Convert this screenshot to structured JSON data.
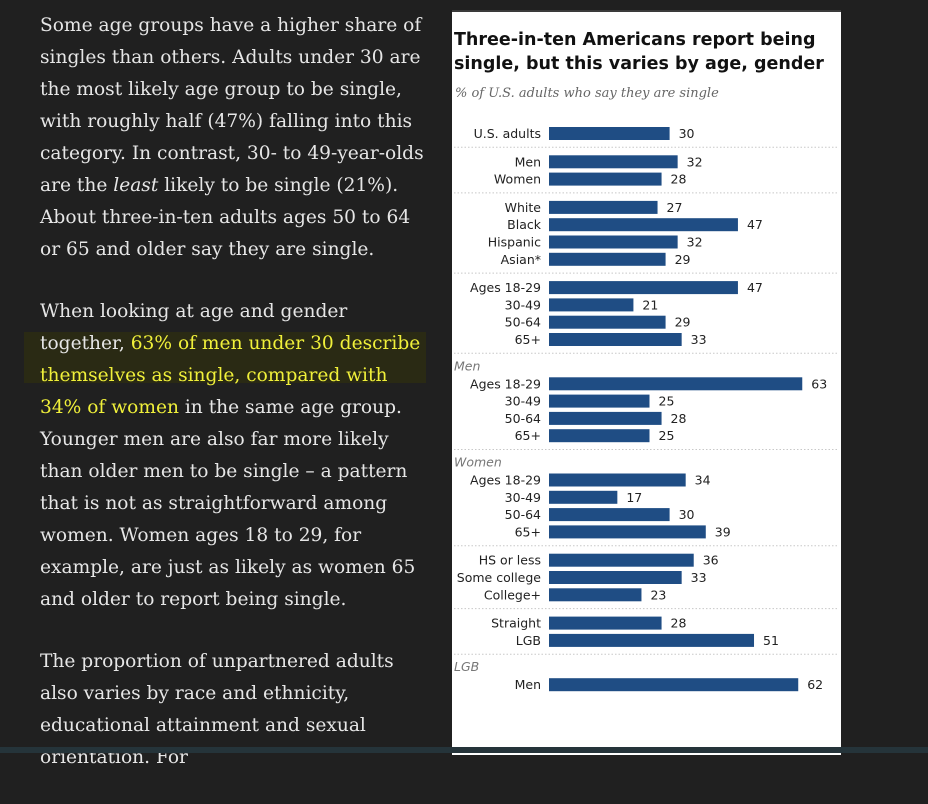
{
  "article": {
    "paragraph_1": "Some age groups have a higher share of singles than others. Adults under 30 are the most likely age group to be single, with roughly half (47%) falling into this category. In contrast, 30- to 49-year-olds are the ",
    "paragraph_1_em": "least",
    "paragraph_1_tail": " likely to be single (21%). About three-in-ten adults ages 50 to 64 or 65 and older say they are single.",
    "paragraph_2_lead": "When looking at age and gender together, ",
    "paragraph_2_highlight": "63% of men under 30 describe themselves as single, compared with 34% of women",
    "paragraph_2_tail": " in the same age group. Younger men are also far more likely than older men to be single – a pattern that is not as straightforward among women. Women ages 18 to 29, for example, are just as likely as women 65 and older to report being single.",
    "paragraph_3": "The proportion of unpartnered adults also varies by race and ethnicity, educational attainment and sexual orientation. For"
  },
  "colors": {
    "bar": "#1f4d84",
    "highlight_text": "#f0f03a",
    "page_background": "#202020",
    "article_text": "#e6e6e6"
  },
  "chart_data": {
    "type": "bar",
    "orientation": "horizontal",
    "title": "Three-in-ten Americans report being single, but this varies by age, gender",
    "subtitle": "% of U.S. adults who say they are single",
    "xlim": [
      0,
      70
    ],
    "groups": [
      {
        "label": "",
        "items": [
          {
            "category": "U.S. adults",
            "value": 30
          }
        ]
      },
      {
        "label": "",
        "items": [
          {
            "category": "Men",
            "value": 32
          },
          {
            "category": "Women",
            "value": 28
          }
        ]
      },
      {
        "label": "",
        "items": [
          {
            "category": "White",
            "value": 27
          },
          {
            "category": "Black",
            "value": 47
          },
          {
            "category": "Hispanic",
            "value": 32
          },
          {
            "category": "Asian*",
            "value": 29
          }
        ]
      },
      {
        "label": "",
        "items": [
          {
            "category": "Ages 18-29",
            "value": 47
          },
          {
            "category": "30-49",
            "value": 21
          },
          {
            "category": "50-64",
            "value": 29
          },
          {
            "category": "65+",
            "value": 33
          }
        ]
      },
      {
        "label": "Men",
        "items": [
          {
            "category": "Ages 18-29",
            "value": 63
          },
          {
            "category": "30-49",
            "value": 25
          },
          {
            "category": "50-64",
            "value": 28
          },
          {
            "category": "65+",
            "value": 25
          }
        ]
      },
      {
        "label": "Women",
        "items": [
          {
            "category": "Ages 18-29",
            "value": 34
          },
          {
            "category": "30-49",
            "value": 17
          },
          {
            "category": "50-64",
            "value": 30
          },
          {
            "category": "65+",
            "value": 39
          }
        ]
      },
      {
        "label": "",
        "items": [
          {
            "category": "HS or less",
            "value": 36
          },
          {
            "category": "Some college",
            "value": 33
          },
          {
            "category": "College+",
            "value": 23
          }
        ]
      },
      {
        "label": "",
        "items": [
          {
            "category": "Straight",
            "value": 28
          },
          {
            "category": "LGB",
            "value": 51
          }
        ]
      },
      {
        "label": "LGB",
        "items": [
          {
            "category": "Men",
            "value": 62
          }
        ]
      }
    ]
  }
}
